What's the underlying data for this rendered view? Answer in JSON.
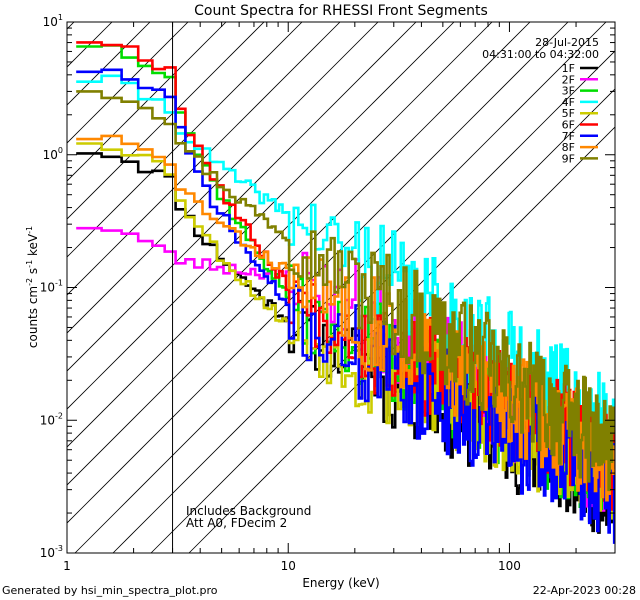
{
  "chart_data": {
    "type": "line",
    "title": "Count Spectra for RHESSI Front Segments",
    "xlabel": "Energy (keV)",
    "ylabel": "counts cm",
    "ylabel_sup1": "-2",
    "ylabel_mid": " s",
    "ylabel_sup2": "-1",
    "ylabel_end": " keV",
    "ylabel_sup3": "-1",
    "xscale": "log",
    "yscale": "log",
    "xlim": [
      1,
      300
    ],
    "ylim": [
      0.001,
      10
    ],
    "x_ticks": [
      {
        "value": 1,
        "label": "1"
      },
      {
        "value": 10,
        "label": "10"
      },
      {
        "value": 100,
        "label": "100"
      }
    ],
    "y_ticks": [
      {
        "value": 0.001,
        "base": "10",
        "exp": "-3"
      },
      {
        "value": 0.01,
        "base": "10",
        "exp": "-2"
      },
      {
        "value": 0.1,
        "base": "10",
        "exp": "-1"
      },
      {
        "value": 1,
        "base": "10",
        "exp": "0"
      },
      {
        "value": 10,
        "base": "10",
        "exp": "1"
      }
    ],
    "date": "28-Jul-2015",
    "time_range": "04:31:00 to 04:32:00",
    "threshold_energy": 3,
    "annotations": [
      "Includes Background",
      "Att A0, FDecim 2"
    ],
    "footer_left": "Generated by hsi_min_spectra_plot.pro",
    "footer_right": "22-Apr-2023 00:28",
    "series": [
      {
        "name": "1F",
        "color": "#000000",
        "lo": 1.1,
        "knee": 0.045,
        "tail": 0.003,
        "seed": 11
      },
      {
        "name": "2F",
        "color": "#ff00ff",
        "lo": 0.3,
        "knee": 0.12,
        "tail": 0.004,
        "seed": 23
      },
      {
        "name": "3F",
        "color": "#00dd00",
        "lo": 7.0,
        "knee": 0.06,
        "tail": 0.004,
        "seed": 37
      },
      {
        "name": "4F",
        "color": "#00ffff",
        "lo": 3.8,
        "knee": 0.3,
        "tail": 0.008,
        "seed": 41
      },
      {
        "name": "5F",
        "color": "#cccc00",
        "lo": 1.3,
        "knee": 0.04,
        "tail": 0.004,
        "seed": 53
      },
      {
        "name": "6F",
        "color": "#ff0000",
        "lo": 7.5,
        "knee": 0.07,
        "tail": 0.005,
        "seed": 67
      },
      {
        "name": "7F",
        "color": "#0000ff",
        "lo": 4.5,
        "knee": 0.05,
        "tail": 0.003,
        "seed": 71
      },
      {
        "name": "8F",
        "color": "#ff8800",
        "lo": 1.4,
        "knee": 0.11,
        "tail": 0.005,
        "seed": 83
      },
      {
        "name": "9F",
        "color": "#808000",
        "lo": 3.2,
        "knee": 0.2,
        "tail": 0.006,
        "seed": 97
      }
    ]
  }
}
